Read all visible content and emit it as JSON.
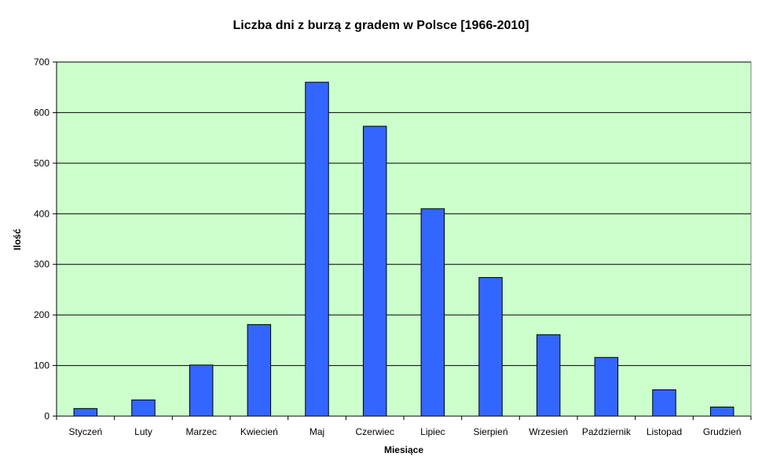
{
  "chart_data": {
    "type": "bar",
    "title": "Liczba dni z burzą z gradem w Polsce [1966-2010]",
    "xlabel": "Miesiące",
    "ylabel": "Ilość",
    "ylim": [
      0,
      700
    ],
    "yticks": [
      0,
      100,
      200,
      300,
      400,
      500,
      600,
      700
    ],
    "grid": true,
    "legend": "none",
    "categories": [
      "Styczeń",
      "Luty",
      "Marzec",
      "Kwiecień",
      "Maj",
      "Czerwiec",
      "Lipiec",
      "Sierpień",
      "Wrzesień",
      "Październik",
      "Listopad",
      "Grudzień"
    ],
    "values": [
      15,
      32,
      101,
      181,
      660,
      573,
      410,
      274,
      161,
      116,
      52,
      18
    ]
  },
  "colors": {
    "plot_background": "#CCFFCC",
    "bar_fill": "#3366FF",
    "bar_stroke": "#000000",
    "gridline": "#000000"
  }
}
